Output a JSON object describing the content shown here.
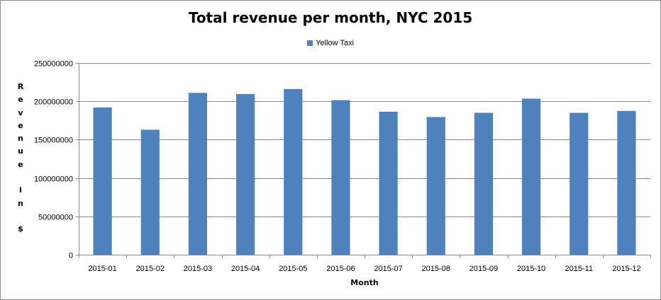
{
  "chart_data": {
    "type": "bar",
    "title": "Total revenue per month, NYC 2015",
    "xlabel": "Month",
    "ylabel": "Revenue in $",
    "ylim": [
      0,
      250000000
    ],
    "yticks": [
      "0",
      "50000000",
      "100000000",
      "150000000",
      "200000000",
      "250000000"
    ],
    "categories": [
      "2015-01",
      "2015-02",
      "2015-03",
      "2015-04",
      "2015-05",
      "2015-06",
      "2015-07",
      "2015-08",
      "2015-09",
      "2015-10",
      "2015-11",
      "2015-12"
    ],
    "series": [
      {
        "name": "Yellow Taxi",
        "color": "#4F81BD",
        "values": [
          192000000,
          163000000,
          211000000,
          209500000,
          216000000,
          201500000,
          186500000,
          179500000,
          185000000,
          203500000,
          185000000,
          187500000
        ]
      }
    ],
    "grid": true,
    "legend_position": "top"
  }
}
